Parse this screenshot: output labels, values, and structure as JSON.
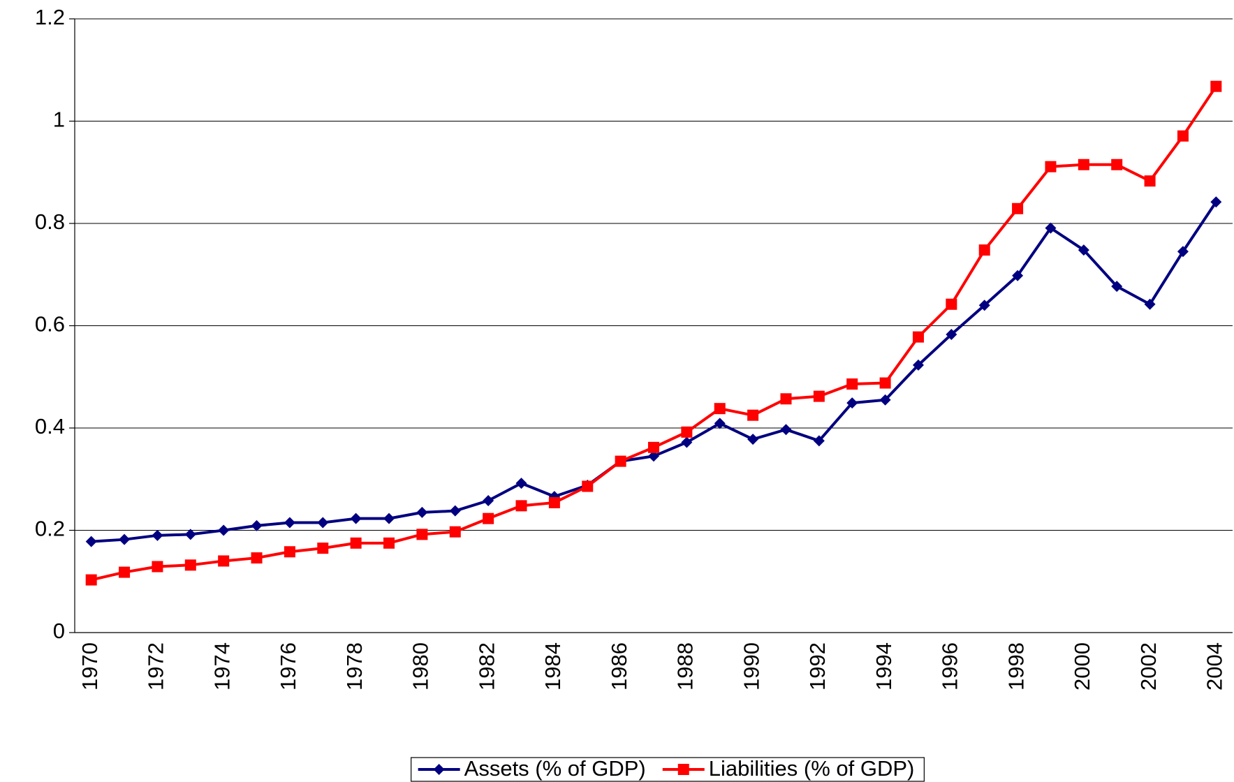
{
  "chart_data": {
    "type": "line",
    "categories": [
      "1970",
      null,
      "1972",
      null,
      "1974",
      null,
      "1976",
      null,
      "1978",
      null,
      "1980",
      null,
      "1982",
      null,
      "1984",
      null,
      "1986",
      null,
      "1988",
      null,
      "1990",
      null,
      "1992",
      null,
      "1994",
      null,
      "1996",
      null,
      "1998",
      null,
      "2000",
      null,
      "2002",
      null,
      "2004"
    ],
    "series": [
      {
        "name": "Assets (% of GDP)",
        "color": "#000080",
        "marker": "diamond",
        "values": [
          0.178,
          0.182,
          0.19,
          0.192,
          0.2,
          0.209,
          0.215,
          0.215,
          0.223,
          0.223,
          0.235,
          0.238,
          0.258,
          0.292,
          0.266,
          0.288,
          0.335,
          0.345,
          0.372,
          0.409,
          0.378,
          0.397,
          0.375,
          0.449,
          0.455,
          0.523,
          0.583,
          0.64,
          0.698,
          0.791,
          0.748,
          0.677,
          0.642,
          0.745,
          0.842
        ]
      },
      {
        "name": "Liabilities (% of GDP)",
        "color": "#ff0000",
        "marker": "square",
        "values": [
          0.103,
          0.118,
          0.129,
          0.132,
          0.14,
          0.146,
          0.158,
          0.165,
          0.175,
          0.175,
          0.192,
          0.197,
          0.223,
          0.248,
          0.254,
          0.286,
          0.335,
          0.362,
          0.392,
          0.438,
          0.425,
          0.457,
          0.462,
          0.486,
          0.488,
          0.578,
          0.642,
          0.748,
          0.829,
          0.911,
          0.915,
          0.915,
          0.883,
          0.971,
          1.068
        ]
      }
    ],
    "ylim": [
      0,
      1.2
    ],
    "yticks": [
      0,
      0.2,
      0.4,
      0.6,
      0.8,
      1,
      1.2
    ],
    "grid": true,
    "legend": "bottom"
  }
}
